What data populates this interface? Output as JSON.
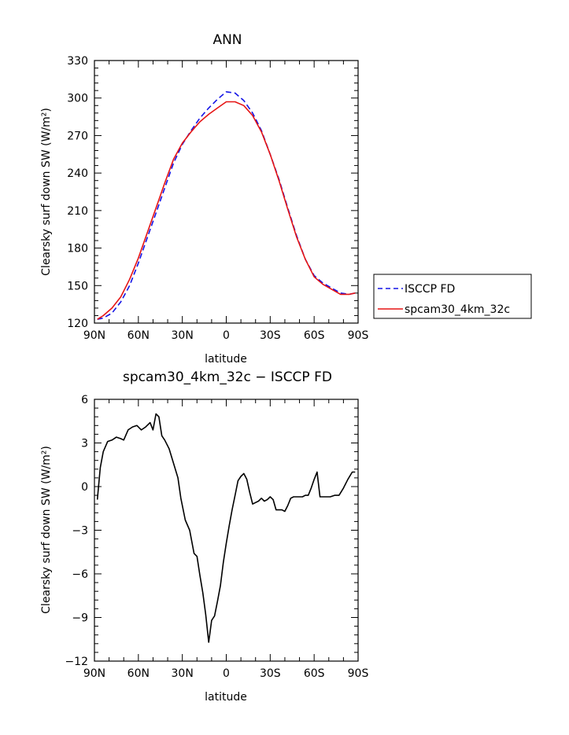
{
  "chart_data": [
    {
      "type": "line",
      "title": "ANN",
      "xlabel": "latitude",
      "ylabel": "Clearsky surf down SW (W/m²)",
      "xlim": [
        90,
        -90
      ],
      "ylim": [
        120,
        330
      ],
      "x_ticks": [
        "90N",
        "60N",
        "30N",
        "0",
        "30S",
        "60S",
        "90S"
      ],
      "x_tick_values": [
        90,
        60,
        30,
        0,
        -30,
        -60,
        -90
      ],
      "y_ticks": [
        "120",
        "150",
        "180",
        "210",
        "240",
        "270",
        "300",
        "330"
      ],
      "y_tick_values": [
        120,
        150,
        180,
        210,
        240,
        270,
        300,
        330
      ],
      "legend_position": "right",
      "series": [
        {
          "name": "ISCCP FD",
          "color": "#1414e6",
          "style": "dashed",
          "x": [
            88,
            84,
            78,
            72,
            66,
            60,
            54,
            48,
            42,
            36,
            30,
            24,
            18,
            12,
            6,
            0,
            -6,
            -12,
            -18,
            -24,
            -30,
            -36,
            -42,
            -48,
            -54,
            -60,
            -66,
            -72,
            -78,
            -84,
            -88
          ],
          "y": [
            123,
            124,
            128,
            137,
            150,
            168,
            188,
            208,
            228,
            248,
            263,
            274,
            284,
            292,
            299,
            305,
            304,
            298,
            288,
            274,
            255,
            235,
            212,
            190,
            171,
            158,
            152,
            148,
            144,
            143,
            144
          ]
        },
        {
          "name": "spcam30_4km_32c",
          "color": "#e61414",
          "style": "solid",
          "x": [
            88,
            84,
            78,
            72,
            66,
            60,
            54,
            48,
            42,
            36,
            30,
            24,
            18,
            12,
            6,
            0,
            -6,
            -12,
            -18,
            -24,
            -30,
            -36,
            -42,
            -48,
            -54,
            -60,
            -66,
            -72,
            -78,
            -84,
            -88
          ],
          "y": [
            123,
            126,
            132,
            141,
            155,
            172,
            192,
            212,
            232,
            251,
            264,
            273,
            281,
            287,
            292,
            297,
            297,
            294,
            286,
            273,
            255,
            234,
            211,
            189,
            171,
            157,
            151,
            147,
            143,
            143,
            144
          ]
        }
      ]
    },
    {
      "type": "line",
      "title": "spcam30_4km_32c − ISCCP FD",
      "xlabel": "latitude",
      "ylabel": "Clearsky surf down SW (W/m²)",
      "xlim": [
        90,
        -90
      ],
      "ylim": [
        -12,
        6
      ],
      "x_ticks": [
        "90N",
        "60N",
        "30N",
        "0",
        "30S",
        "60S",
        "90S"
      ],
      "x_tick_values": [
        90,
        60,
        30,
        0,
        -30,
        -60,
        -90
      ],
      "y_ticks": [
        "−12",
        "−9",
        "−6",
        "−3",
        "0",
        "3",
        "6"
      ],
      "y_tick_values": [
        -12,
        -9,
        -6,
        -3,
        0,
        3,
        6
      ],
      "series": [
        {
          "color": "#000000",
          "style": "solid",
          "x": [
            88,
            86,
            84,
            81,
            78,
            75,
            72,
            70,
            67,
            64,
            61,
            58,
            55,
            52,
            50,
            48,
            46,
            44,
            42,
            39,
            36,
            33,
            31,
            28,
            25,
            22,
            20,
            18,
            16,
            14,
            12,
            10,
            8,
            6,
            4,
            2,
            0,
            -2,
            -4,
            -6,
            -8,
            -10,
            -12,
            -14,
            -16,
            -18,
            -20,
            -22,
            -24,
            -26,
            -28,
            -30,
            -32,
            -34,
            -36,
            -38,
            -40,
            -42,
            -44,
            -46,
            -48,
            -50,
            -52,
            -54,
            -56,
            -58,
            -60,
            -62,
            -64,
            -66,
            -68,
            -71,
            -74,
            -77,
            -80,
            -83,
            -86,
            -88
          ],
          "y": [
            -0.9,
            1.3,
            2.4,
            3.1,
            3.2,
            3.4,
            3.3,
            3.2,
            3.9,
            4.1,
            4.2,
            3.9,
            4.1,
            4.4,
            3.9,
            5.0,
            4.8,
            3.5,
            3.2,
            2.6,
            1.6,
            0.6,
            -0.8,
            -2.3,
            -3.0,
            -4.6,
            -4.8,
            -6.1,
            -7.3,
            -8.8,
            -10.7,
            -9.2,
            -8.9,
            -7.9,
            -6.8,
            -5.2,
            -3.9,
            -2.7,
            -1.6,
            -0.6,
            0.4,
            0.7,
            0.9,
            0.5,
            -0.4,
            -1.2,
            -1.1,
            -1.0,
            -0.8,
            -1.0,
            -0.9,
            -0.7,
            -0.9,
            -1.6,
            -1.6,
            -1.6,
            -1.7,
            -1.3,
            -0.8,
            -0.7,
            -0.7,
            -0.7,
            -0.7,
            -0.6,
            -0.6,
            -0.1,
            0.5,
            1.0,
            -0.7,
            -0.7,
            -0.7,
            -0.7,
            -0.6,
            -0.6,
            -0.1,
            0.5,
            1.0,
            1.0
          ]
        }
      ]
    }
  ]
}
